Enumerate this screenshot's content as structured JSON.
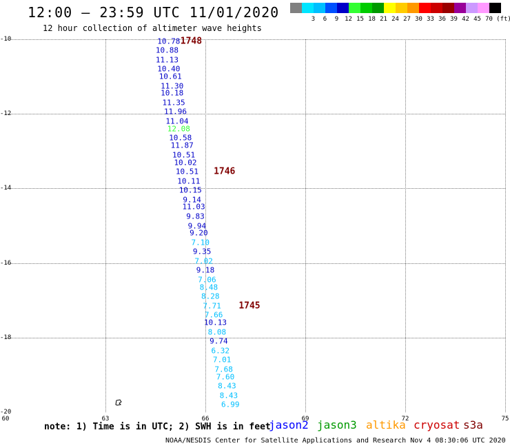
{
  "title": "12:00 — 23:59 UTC 11/01/2020",
  "subtitle": "12 hour collection of altimeter wave heights",
  "scale": {
    "unit": "(ft)",
    "swatches": [
      {
        "label": "",
        "color": "#808080"
      },
      {
        "label": "3",
        "color": "#00e5ff"
      },
      {
        "label": "6",
        "color": "#00bfff"
      },
      {
        "label": "9",
        "color": "#0050ff"
      },
      {
        "label": "12",
        "color": "#0000c8"
      },
      {
        "label": "15",
        "color": "#33ff33"
      },
      {
        "label": "18",
        "color": "#00cc00"
      },
      {
        "label": "21",
        "color": "#009900"
      },
      {
        "label": "24",
        "color": "#ffff00"
      },
      {
        "label": "27",
        "color": "#ffcc00"
      },
      {
        "label": "30",
        "color": "#ff9900"
      },
      {
        "label": "33",
        "color": "#ff0000"
      },
      {
        "label": "36",
        "color": "#cc0000"
      },
      {
        "label": "39",
        "color": "#990000"
      },
      {
        "label": "42",
        "color": "#990099"
      },
      {
        "label": "45",
        "color": "#cc99ff"
      },
      {
        "label": "70",
        "color": "#ff99ff"
      },
      {
        "label": "",
        "color": "#000000"
      }
    ]
  },
  "axes": {
    "x_ticks": [
      "60",
      "63",
      "66",
      "69",
      "72",
      "75"
    ],
    "y_ticks": [
      "-10",
      "-12",
      "-14",
      "-16",
      "-18",
      "-20"
    ],
    "lon_range": [
      60,
      75
    ],
    "lat_range": [
      -20,
      -10
    ]
  },
  "observations": [
    {
      "lon": 64.9,
      "lat": -10.05,
      "v": "10.78",
      "c": "#0000c8"
    },
    {
      "lon": 64.85,
      "lat": -10.3,
      "v": "10.88",
      "c": "#0000c8"
    },
    {
      "lon": 64.85,
      "lat": -10.55,
      "v": "11.13",
      "c": "#0000c8"
    },
    {
      "lon": 64.9,
      "lat": -10.8,
      "v": "10.40",
      "c": "#0000c8"
    },
    {
      "lon": 64.95,
      "lat": -11.0,
      "v": "10.61",
      "c": "#0000c8"
    },
    {
      "lon": 65.0,
      "lat": -11.25,
      "v": "11.30",
      "c": "#0000c8"
    },
    {
      "lon": 65.0,
      "lat": -11.45,
      "v": "10.18",
      "c": "#0000c8"
    },
    {
      "lon": 65.05,
      "lat": -11.7,
      "v": "11.35",
      "c": "#0000c8"
    },
    {
      "lon": 65.1,
      "lat": -11.95,
      "v": "11.96",
      "c": "#0000c8"
    },
    {
      "lon": 65.15,
      "lat": -12.2,
      "v": "11.04",
      "c": "#0000c8"
    },
    {
      "lon": 65.2,
      "lat": -12.4,
      "v": "12.08",
      "c": "#33ff33"
    },
    {
      "lon": 65.25,
      "lat": -12.65,
      "v": "10.58",
      "c": "#0000c8"
    },
    {
      "lon": 65.3,
      "lat": -12.85,
      "v": "11.87",
      "c": "#0000c8"
    },
    {
      "lon": 65.35,
      "lat": -13.1,
      "v": "10.51",
      "c": "#0000c8"
    },
    {
      "lon": 65.4,
      "lat": -13.3,
      "v": "10.02",
      "c": "#0000c8"
    },
    {
      "lon": 65.45,
      "lat": -13.55,
      "v": "10.51",
      "c": "#0000c8"
    },
    {
      "lon": 65.5,
      "lat": -13.8,
      "v": "10.11",
      "c": "#0000c8"
    },
    {
      "lon": 65.55,
      "lat": -14.05,
      "v": "10.15",
      "c": "#0000c8"
    },
    {
      "lon": 65.6,
      "lat": -14.3,
      "v": "9.14",
      "c": "#0000c8"
    },
    {
      "lon": 65.65,
      "lat": -14.5,
      "v": "11.03",
      "c": "#0000c8"
    },
    {
      "lon": 65.7,
      "lat": -14.75,
      "v": "9.83",
      "c": "#0000c8"
    },
    {
      "lon": 65.75,
      "lat": -15.0,
      "v": "9.94",
      "c": "#0000c8"
    },
    {
      "lon": 65.8,
      "lat": -15.2,
      "v": "9.20",
      "c": "#0000c8"
    },
    {
      "lon": 65.85,
      "lat": -15.45,
      "v": "7.10",
      "c": "#00bfff"
    },
    {
      "lon": 65.9,
      "lat": -15.7,
      "v": "9.35",
      "c": "#0000c8"
    },
    {
      "lon": 65.95,
      "lat": -15.95,
      "v": "7.02",
      "c": "#00bfff"
    },
    {
      "lon": 66.0,
      "lat": -16.2,
      "v": "9.18",
      "c": "#0000c8"
    },
    {
      "lon": 66.05,
      "lat": -16.45,
      "v": "7.06",
      "c": "#00bfff"
    },
    {
      "lon": 66.1,
      "lat": -16.65,
      "v": "8.48",
      "c": "#00bfff"
    },
    {
      "lon": 66.15,
      "lat": -16.9,
      "v": "8.28",
      "c": "#00bfff"
    },
    {
      "lon": 66.2,
      "lat": -17.15,
      "v": "7.71",
      "c": "#00bfff"
    },
    {
      "lon": 66.25,
      "lat": -17.4,
      "v": "7.66",
      "c": "#00bfff"
    },
    {
      "lon": 66.3,
      "lat": -17.6,
      "v": "10.13",
      "c": "#0000c8"
    },
    {
      "lon": 66.35,
      "lat": -17.85,
      "v": "8.08",
      "c": "#00bfff"
    },
    {
      "lon": 66.4,
      "lat": -18.1,
      "v": "9.74",
      "c": "#0000c8"
    },
    {
      "lon": 66.45,
      "lat": -18.35,
      "v": "6.32",
      "c": "#00bfff"
    },
    {
      "lon": 66.5,
      "lat": -18.6,
      "v": "7.01",
      "c": "#00bfff"
    },
    {
      "lon": 66.55,
      "lat": -18.85,
      "v": "7.68",
      "c": "#00bfff"
    },
    {
      "lon": 66.6,
      "lat": -19.05,
      "v": "7.60",
      "c": "#00bfff"
    },
    {
      "lon": 66.65,
      "lat": -19.3,
      "v": "8.43",
      "c": "#00bfff"
    },
    {
      "lon": 66.7,
      "lat": -19.55,
      "v": "8.43",
      "c": "#00bfff"
    },
    {
      "lon": 66.75,
      "lat": -19.8,
      "v": "6.99",
      "c": "#00bfff"
    }
  ],
  "tracks": [
    {
      "lon": 65.25,
      "lat": -10.05,
      "label": "1748"
    },
    {
      "lon": 66.25,
      "lat": -13.55,
      "label": "1746"
    },
    {
      "lon": 67.0,
      "lat": -17.15,
      "label": "1745"
    }
  ],
  "note": "note: 1) Time is in UTC; 2) SWH is in feet",
  "legend": [
    {
      "name": "jason2",
      "color": "#0000ff"
    },
    {
      "name": "jason3",
      "color": "#009900"
    },
    {
      "name": "altika",
      "color": "#ff9900"
    },
    {
      "name": "cryosat",
      "color": "#cc0000"
    },
    {
      "name": "s3a",
      "color": "#800000"
    }
  ],
  "credit": "NOAA/NESDIS Center for Satellite Applications and Research   Nov  4 08:30:06 UTC 2020"
}
